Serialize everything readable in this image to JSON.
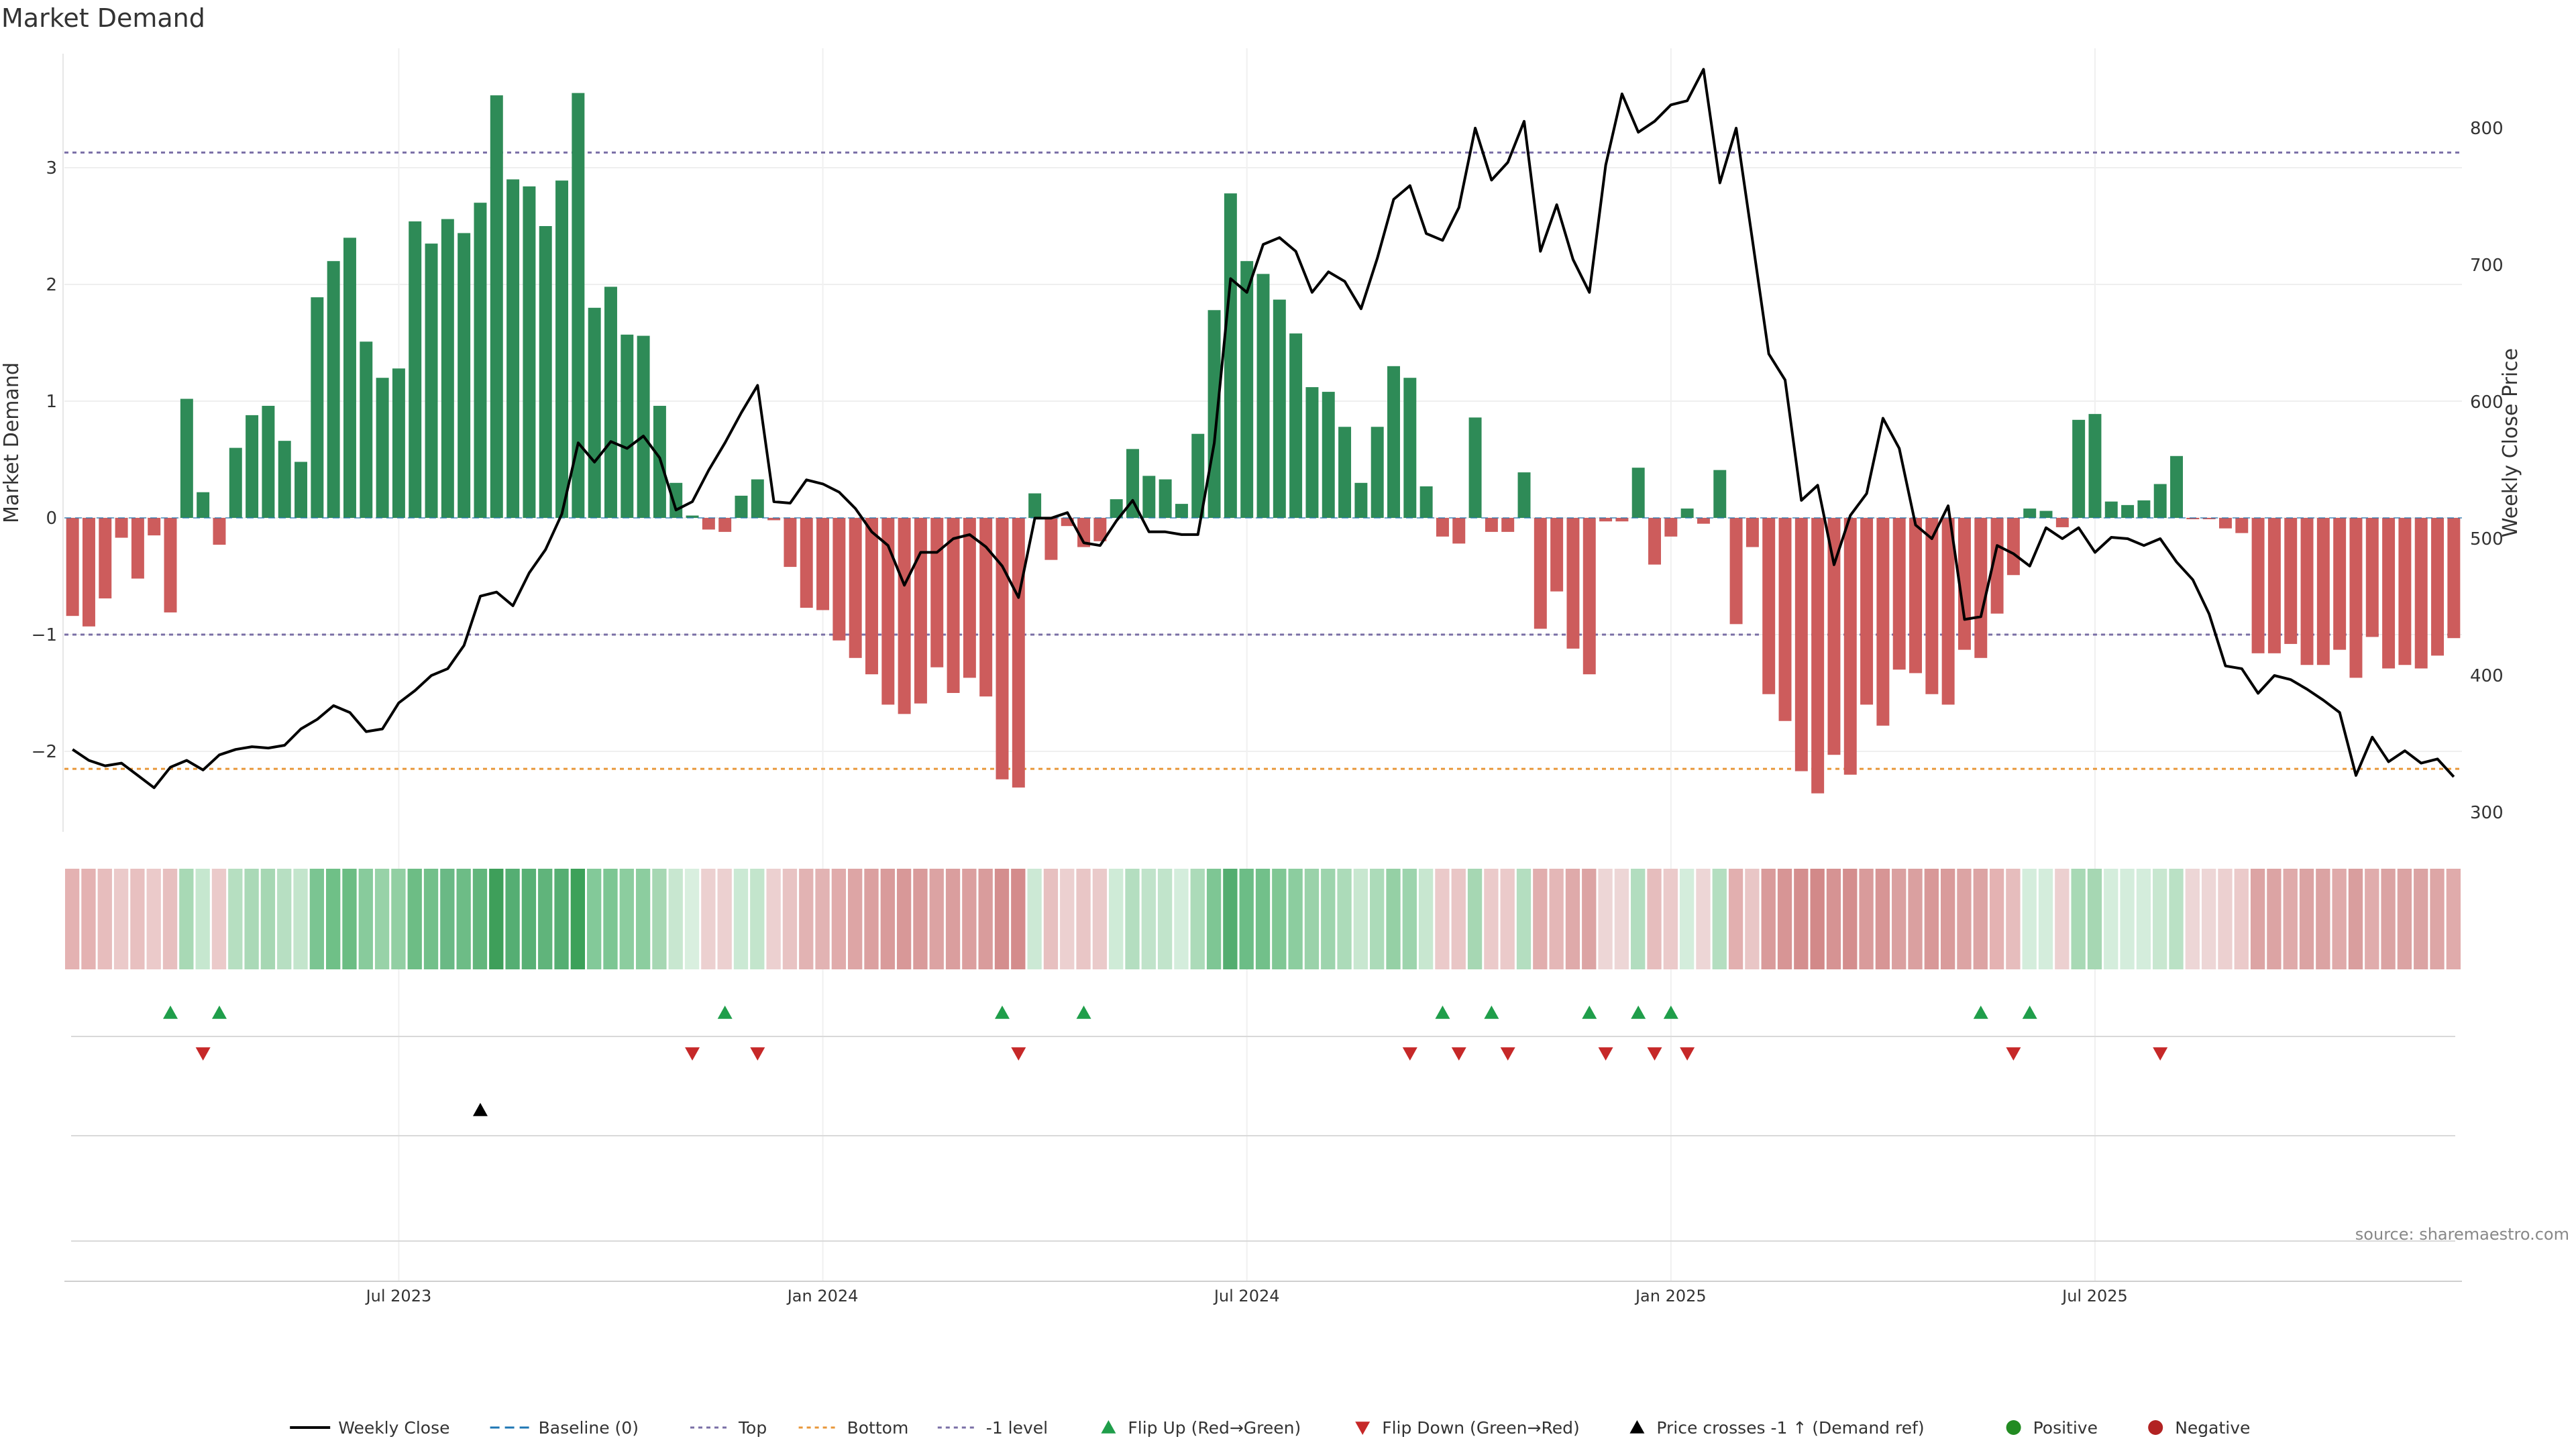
{
  "chart_data": {
    "type": "bar",
    "title": "Market Demand",
    "ylabel_left": "Market Demand",
    "ylabel_right": "Weekly Close Price",
    "ylim_left": [
      -2.7,
      4.0
    ],
    "ylim_right": [
      290,
      850
    ],
    "left_ticks": [
      "3",
      "2",
      "1",
      "0",
      "−1",
      "−2"
    ],
    "left_tick_values": [
      3,
      2,
      1,
      0,
      -1,
      -2
    ],
    "right_ticks": [
      "800",
      "700",
      "600",
      "500",
      "400",
      "300"
    ],
    "right_tick_values": [
      800,
      700,
      600,
      500,
      400,
      300
    ],
    "x_labels": [
      "Jul 2023",
      "Jan 2024",
      "Jul 2024",
      "Jan 2025",
      "Jul 2025"
    ],
    "x_label_weeks": [
      20,
      46,
      72,
      98,
      124
    ],
    "levels": {
      "top": 3.13,
      "bottom": -2.15,
      "minus_one": -1.0
    },
    "demand": [
      -0.84,
      -0.93,
      -0.69,
      -0.17,
      -0.52,
      -0.15,
      -0.81,
      1.02,
      0.22,
      -0.23,
      0.6,
      0.88,
      0.96,
      0.66,
      0.48,
      1.89,
      2.2,
      2.4,
      1.51,
      1.2,
      1.28,
      2.54,
      2.35,
      2.56,
      2.44,
      2.7,
      3.62,
      2.9,
      2.84,
      2.5,
      2.89,
      3.64,
      1.8,
      1.98,
      1.57,
      1.56,
      0.96,
      0.3,
      0.02,
      -0.1,
      -0.12,
      0.19,
      0.33,
      -0.02,
      -0.42,
      -0.77,
      -0.79,
      -1.05,
      -1.2,
      -1.34,
      -1.6,
      -1.68,
      -1.59,
      -1.28,
      -1.5,
      -1.37,
      -1.53,
      -2.24,
      -2.31,
      0.21,
      -0.36,
      -0.07,
      -0.25,
      -0.2,
      0.16,
      0.59,
      0.36,
      0.33,
      0.12,
      0.72,
      1.78,
      2.78,
      2.2,
      2.09,
      1.87,
      1.58,
      1.12,
      1.08,
      0.78,
      0.3,
      0.78,
      1.3,
      1.2,
      0.27,
      -0.16,
      -0.22,
      0.86,
      -0.12,
      -0.12,
      0.39,
      -0.95,
      -0.63,
      -1.12,
      -1.34,
      -0.03,
      -0.03,
      0.43,
      -0.4,
      -0.16,
      0.08,
      -0.05,
      0.41,
      -0.91,
      -0.25,
      -1.51,
      -1.74,
      -2.17,
      -2.36,
      -2.03,
      -2.2,
      -1.6,
      -1.78,
      -1.3,
      -1.33,
      -1.51,
      -1.6,
      -1.13,
      -1.2,
      -0.82,
      -0.49,
      0.08,
      0.06,
      -0.08,
      0.84,
      0.89,
      0.14,
      0.11,
      0.15,
      0.29,
      0.53,
      -0.01,
      -0.01,
      -0.09,
      -0.13,
      -1.16,
      -1.16,
      -1.08,
      -1.26,
      -1.26,
      -1.13,
      -1.37,
      -1.02,
      -1.29,
      -1.26,
      -1.29,
      -1.18,
      -1.03
    ],
    "price_series": [
      [
        0,
        346
      ],
      [
        1,
        338
      ],
      [
        2,
        334
      ],
      [
        3,
        336
      ],
      [
        4,
        327
      ],
      [
        5,
        318
      ],
      [
        6,
        333
      ],
      [
        7,
        338
      ],
      [
        8,
        331
      ],
      [
        9,
        342
      ],
      [
        10,
        346
      ],
      [
        11,
        348
      ],
      [
        12,
        347
      ],
      [
        13,
        349
      ],
      [
        14,
        361
      ],
      [
        15,
        368
      ],
      [
        16,
        378
      ],
      [
        17,
        373
      ],
      [
        18,
        359
      ],
      [
        19,
        361
      ],
      [
        20,
        380
      ],
      [
        21,
        389
      ],
      [
        22,
        400
      ],
      [
        23,
        405
      ],
      [
        24,
        422
      ],
      [
        25,
        458
      ],
      [
        26,
        461
      ],
      [
        27,
        451
      ],
      [
        28,
        475
      ],
      [
        29,
        492
      ],
      [
        30,
        518
      ],
      [
        31,
        570
      ],
      [
        32,
        556
      ],
      [
        33,
        571
      ],
      [
        34,
        566
      ],
      [
        35,
        575
      ],
      [
        36,
        559
      ],
      [
        37,
        521
      ],
      [
        38,
        527
      ],
      [
        39,
        550
      ],
      [
        40,
        570
      ],
      [
        41,
        592
      ],
      [
        42,
        612
      ],
      [
        43,
        527
      ],
      [
        44,
        526
      ],
      [
        45,
        543
      ],
      [
        46,
        540
      ],
      [
        47,
        534
      ],
      [
        48,
        522
      ],
      [
        49,
        505
      ],
      [
        50,
        495
      ],
      [
        51,
        466
      ],
      [
        52,
        490
      ],
      [
        53,
        490
      ],
      [
        54,
        500
      ],
      [
        55,
        503
      ],
      [
        56,
        494
      ],
      [
        57,
        480
      ],
      [
        58,
        457
      ],
      [
        59,
        515
      ],
      [
        60,
        515
      ],
      [
        61,
        519
      ],
      [
        62,
        497
      ],
      [
        63,
        495
      ],
      [
        64,
        513
      ],
      [
        65,
        528
      ],
      [
        66,
        505
      ],
      [
        67,
        505
      ],
      [
        68,
        503
      ],
      [
        69,
        503
      ],
      [
        70,
        570
      ],
      [
        71,
        690
      ],
      [
        72,
        680
      ],
      [
        73,
        715
      ],
      [
        74,
        720
      ],
      [
        75,
        710
      ],
      [
        76,
        680
      ],
      [
        77,
        695
      ],
      [
        78,
        688
      ],
      [
        79,
        668
      ],
      [
        80,
        705
      ],
      [
        81,
        748
      ],
      [
        82,
        758
      ],
      [
        83,
        723
      ],
      [
        84,
        718
      ],
      [
        85,
        742
      ],
      [
        86,
        800
      ],
      [
        87,
        762
      ],
      [
        88,
        775
      ],
      [
        89,
        805
      ],
      [
        90,
        710
      ],
      [
        91,
        744
      ],
      [
        92,
        704
      ],
      [
        93,
        680
      ],
      [
        94,
        773
      ],
      [
        95,
        825
      ],
      [
        96,
        797
      ],
      [
        97,
        805
      ],
      [
        98,
        817
      ],
      [
        99,
        820
      ],
      [
        100,
        843
      ],
      [
        101,
        760
      ],
      [
        102,
        800
      ],
      [
        103,
        718
      ],
      [
        104,
        635
      ],
      [
        105,
        616
      ],
      [
        106,
        528
      ],
      [
        107,
        539
      ],
      [
        108,
        481
      ],
      [
        109,
        517
      ],
      [
        110,
        533
      ],
      [
        111,
        588
      ],
      [
        112,
        566
      ],
      [
        113,
        510
      ],
      [
        114,
        500
      ],
      [
        115,
        524
      ],
      [
        116,
        441
      ],
      [
        117,
        443
      ],
      [
        118,
        495
      ],
      [
        119,
        489
      ],
      [
        120,
        480
      ],
      [
        121,
        508
      ],
      [
        122,
        500
      ],
      [
        123,
        508
      ],
      [
        124,
        490
      ],
      [
        125,
        501
      ],
      [
        126,
        500
      ],
      [
        127,
        495
      ],
      [
        128,
        500
      ],
      [
        129,
        483
      ],
      [
        130,
        470
      ],
      [
        131,
        445
      ],
      [
        132,
        407
      ],
      [
        133,
        405
      ],
      [
        134,
        387
      ],
      [
        135,
        400
      ],
      [
        136,
        397
      ],
      [
        137,
        390
      ],
      [
        138,
        382
      ],
      [
        139,
        373
      ],
      [
        140,
        327
      ],
      [
        141,
        355
      ],
      [
        142,
        337
      ],
      [
        143,
        345
      ],
      [
        144,
        336
      ],
      [
        145,
        339
      ],
      [
        146,
        326
      ]
    ],
    "heat_colors": [
      "#e4b2b2",
      "#e4b2b2",
      "#e7bdbd",
      "#ebcaca",
      "#e8c0c0",
      "#ebcaca",
      "#e7bfbf",
      "#a8d9b5",
      "#c6e7cf",
      "#ebcaca",
      "#b6dfc1",
      "#aad9b7",
      "#a6d7b3",
      "#b7dfc2",
      "#c3e5cc",
      "#7bc592",
      "#6fc087",
      "#6bbd83",
      "#88cb9c",
      "#98d2a8",
      "#92cfa3",
      "#6dbd85",
      "#72c08a",
      "#6ab985",
      "#6dbc86",
      "#62b67c",
      "#3e9f5a",
      "#55ae73",
      "#58b075",
      "#60b47b",
      "#55ae72",
      "#3ca159",
      "#83c999",
      "#7cc693",
      "#8ccd9f",
      "#8ccd9f",
      "#a6d7b3",
      "#c8e7d0",
      "#d9efdf",
      "#ecd0d0",
      "#ecd0d0",
      "#cbe9d4",
      "#c3e5cc",
      "#ecd0d0",
      "#e8c3c3",
      "#e2b3b3",
      "#e2b3b3",
      "#e0abab",
      "#dda5a5",
      "#dba0a0",
      "#d99b9b",
      "#d89898",
      "#d99b9b",
      "#dca3a3",
      "#da9e9e",
      "#db9f9f",
      "#d99c9c",
      "#d48e8e",
      "#d48c8c",
      "#cce9d5",
      "#e7c0c0",
      "#ecd0d0",
      "#e9c6c6",
      "#eacaca",
      "#cfebd7",
      "#b4dec0",
      "#c0e3ca",
      "#c1e4cb",
      "#d4eddc",
      "#acdbb9",
      "#7ec694",
      "#53ad70",
      "#6cbd86",
      "#72c08a",
      "#80c794",
      "#8ccd9f",
      "#9ad2aa",
      "#9dd4ad",
      "#acdbb9",
      "#c8e7d0",
      "#acdbb9",
      "#95d0a5",
      "#9dd4ad",
      "#c8e7d0",
      "#ebcaca",
      "#e9c6c6",
      "#a6d7b3",
      "#ebcaca",
      "#ebcaca",
      "#b4dec0",
      "#e1aeae",
      "#e4b7b7",
      "#dfaaaa",
      "#dca4a4",
      "#edd6d6",
      "#edd6d6",
      "#b2ddbf",
      "#e6bdbd",
      "#ebcaca",
      "#d4eddc",
      "#edd6d6",
      "#b4dec0",
      "#e2afaf",
      "#e9c6c6",
      "#d99b9b",
      "#d79595",
      "#d48e8e",
      "#d28989",
      "#d69393",
      "#d48e8e",
      "#d99b9b",
      "#d79595",
      "#daa0a0",
      "#daa0a0",
      "#d89898",
      "#d99b9b",
      "#dca4a4",
      "#dca4a4",
      "#e4b2b2",
      "#e6bdbd",
      "#d4eddc",
      "#d4eddc",
      "#ecd0d0",
      "#a8d9b5",
      "#a6d7b3",
      "#d4eddc",
      "#d4eddc",
      "#d4eddc",
      "#c8e7d0",
      "#bae1c5",
      "#edd6d6",
      "#edd6d6",
      "#ecd0d0",
      "#ebcaca",
      "#dca4a4",
      "#dca4a4",
      "#dfaaaa",
      "#dba3a3",
      "#dba3a3",
      "#dfaaaa",
      "#d99e9e",
      "#e0acac",
      "#dba3a3",
      "#dba3a3",
      "#dba3a3",
      "#dda6a6",
      "#e0abab"
    ],
    "flip_up_weeks": [
      6,
      9,
      40,
      57,
      62,
      84,
      87,
      93,
      96,
      98,
      117,
      120
    ],
    "flip_down_weeks": [
      8,
      38,
      42,
      58,
      82,
      85,
      88,
      94,
      97,
      99,
      119,
      128
    ],
    "cross_weeks": [
      25
    ],
    "colors": {
      "positive": "#2e8b57",
      "negative": "#cd5c5c",
      "price": "#000000",
      "flip_up": "#1f9e4a",
      "flip_down": "#c62828",
      "cross": "#000000",
      "level_top": "#7a6fa6",
      "level_bottom": "#e8973a",
      "level_minus_one": "#7a6fa6",
      "baseline": "#1f77b4",
      "legend_positive": "#228b22",
      "legend_negative": "#b22222"
    },
    "legend": [
      {
        "label": "Weekly Close",
        "kind": "line"
      },
      {
        "label": "Baseline (0)",
        "kind": "baseline"
      },
      {
        "label": "Top",
        "kind": "top"
      },
      {
        "label": "Bottom",
        "kind": "bottom"
      },
      {
        "label": "-1 level",
        "kind": "minus_one"
      },
      {
        "label": "Flip Up (Red→Green)",
        "kind": "flip_up"
      },
      {
        "label": "Flip Down (Green→Red)",
        "kind": "flip_down"
      },
      {
        "label": "Price crosses -1 ↑ (Demand ref)",
        "kind": "cross"
      },
      {
        "label": "Positive",
        "kind": "positive"
      },
      {
        "label": "Negative",
        "kind": "negative"
      }
    ],
    "source": "source: sharemaestro.com"
  }
}
